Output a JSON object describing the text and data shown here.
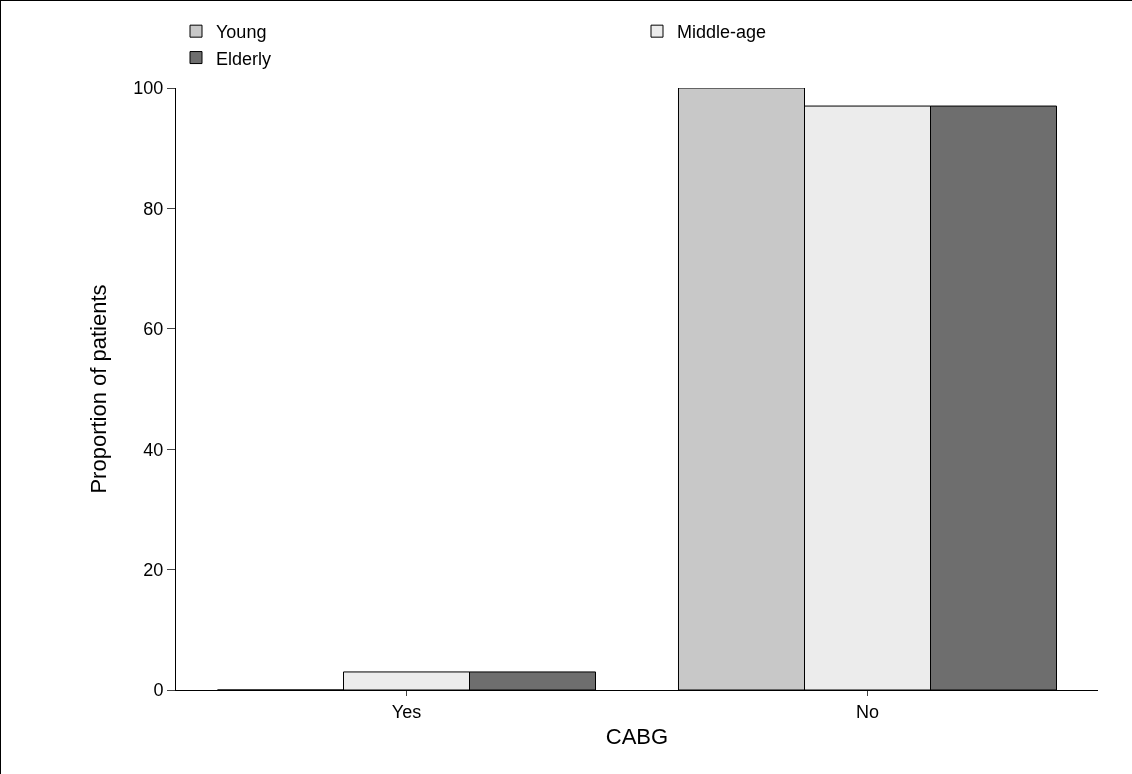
{
  "chart_data": {
    "type": "bar",
    "xlabel": "CABG",
    "ylabel": "Proportion of patients",
    "categories": [
      "Yes",
      "No"
    ],
    "series": [
      {
        "name": "Young",
        "color": "#c8c8c8",
        "values": [
          0,
          100
        ]
      },
      {
        "name": "Middle-age",
        "color": "#ececec",
        "values": [
          3,
          97
        ]
      },
      {
        "name": "Elderly",
        "color": "#6e6e6e",
        "values": [
          3,
          97
        ]
      }
    ],
    "ylim": [
      0,
      100
    ],
    "yticks": [
      0,
      20,
      40,
      60,
      80,
      100
    ],
    "grid": false,
    "legend": "top left"
  }
}
